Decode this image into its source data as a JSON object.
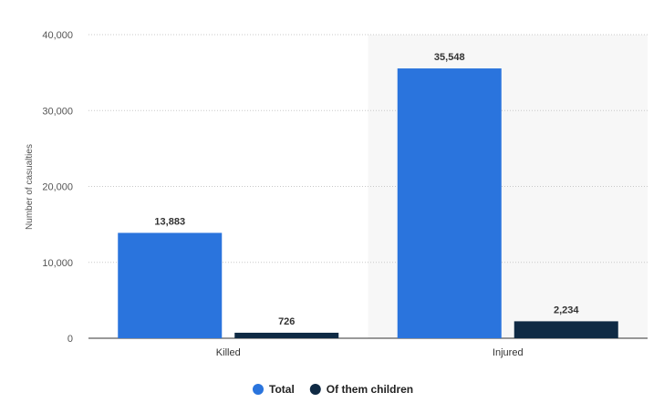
{
  "chart_data": {
    "type": "bar",
    "categories": [
      "Killed",
      "Injured"
    ],
    "series": [
      {
        "name": "Total",
        "values": [
          13883,
          35548
        ],
        "labels": [
          "13,883",
          "35,548"
        ],
        "color": "#2a74dd"
      },
      {
        "name": "Of them children",
        "values": [
          726,
          2234
        ],
        "labels": [
          "726",
          "2,234"
        ],
        "color": "#0f2a44"
      }
    ],
    "title": "",
    "xlabel": "",
    "ylabel": "Number of casualties",
    "ylim": [
      0,
      40000
    ],
    "yticks": [
      0,
      10000,
      20000,
      30000,
      40000
    ],
    "ytick_labels": [
      "0",
      "10,000",
      "20,000",
      "30,000",
      "40,000"
    ],
    "grid": true,
    "legend": "bottom-center",
    "highlight_category": "Injured",
    "highlight_color": "#f7f7f7"
  }
}
